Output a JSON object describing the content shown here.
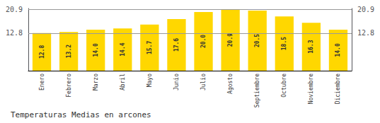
{
  "chart_data": {
    "type": "bar",
    "title": "Temperaturas Medias en arcones",
    "categories": [
      "Enero",
      "Febrero",
      "Marzo",
      "Abril",
      "Mayo",
      "Junio",
      "Julio",
      "Agosto",
      "Septiembre",
      "Octubre",
      "Noviembre",
      "Diciembre"
    ],
    "values": [
      12.8,
      13.2,
      14.0,
      14.4,
      15.7,
      17.6,
      20.0,
      20.9,
      20.5,
      18.5,
      16.3,
      14.0
    ],
    "value_labels": [
      "12.8",
      "13.2",
      "14.0",
      "14.4",
      "15.7",
      "17.6",
      "20.0",
      "20.9",
      "20.5",
      "18.5",
      "16.3",
      "14.0"
    ],
    "color": "#FFD700",
    "data_labels": true,
    "ylim": [
      0,
      21.2
    ],
    "yticks": [
      12.8,
      20.9
    ],
    "y2lim": [
      0,
      21.2
    ],
    "y2ticks": [
      12.8,
      20.9
    ],
    "grid": true
  }
}
